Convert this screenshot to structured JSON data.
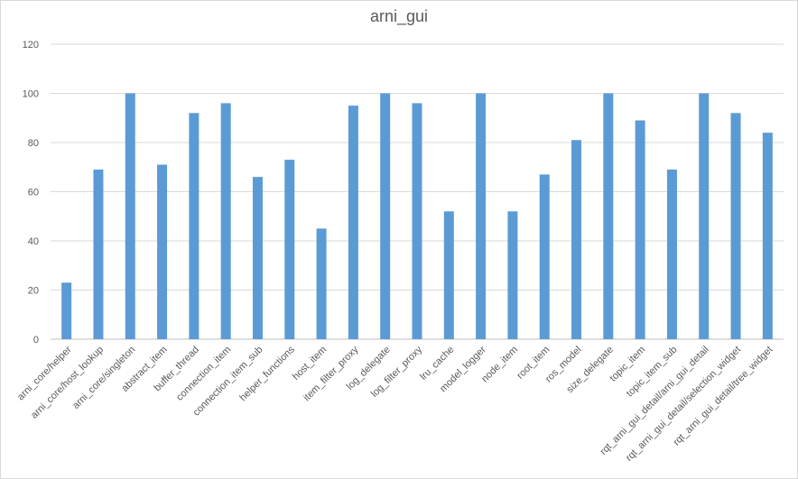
{
  "chart_data": {
    "type": "bar",
    "title": "arni_gui",
    "xlabel": "",
    "ylabel": "",
    "ylim": [
      0,
      120
    ],
    "yticks": [
      0,
      20,
      40,
      60,
      80,
      100,
      120
    ],
    "grid": true,
    "bar_color": "#5b9bd5",
    "categories": [
      "arni_core/helper",
      "arni_core/host_lookup",
      "arni_core/singleton",
      "abstract_item",
      "buffer_thread",
      "connection_item",
      "connection_item_sub",
      "helper_functions",
      "host_item",
      "item_filter_proxy",
      "log_delegate",
      "log_filter_proxy",
      "lru_cache",
      "model_logger",
      "node_item",
      "root_item",
      "ros_model",
      "size_delegate",
      "topic_item",
      "topic_item_sub",
      "rqt_arni_gui_detail/arni_gui_detail",
      "rqt_arni_gui_detail/selection_widget",
      "rqt_arni_gui_detail/tree_widget"
    ],
    "values": [
      23,
      69,
      100,
      71,
      92,
      96,
      66,
      73,
      45,
      95,
      100,
      96,
      52,
      100,
      52,
      67,
      81,
      100,
      89,
      69,
      100,
      92,
      84
    ]
  }
}
